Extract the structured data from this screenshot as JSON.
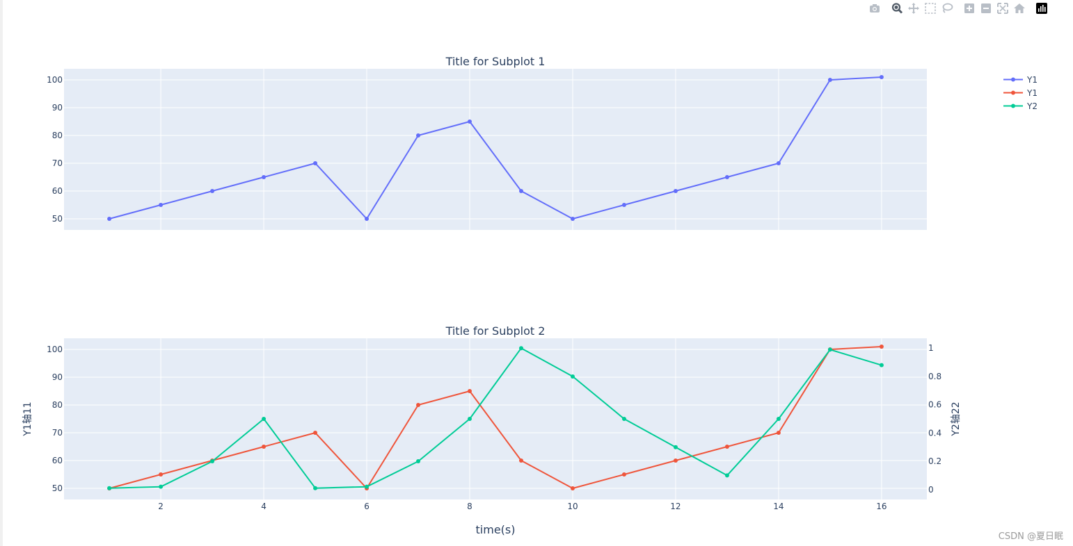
{
  "modebar": {
    "icons": [
      "camera-icon",
      "zoom-icon",
      "pan-icon",
      "box-select-icon",
      "lasso-select-icon",
      "zoom-in-icon",
      "zoom-out-icon",
      "autoscale-icon",
      "reset-axes-icon",
      "plotly-logo-icon"
    ]
  },
  "colors": {
    "plot_bg": "#e5ecf6",
    "grid": "#ffffff",
    "text": "#2a3f5f",
    "blue": "#636efa",
    "red": "#ef553b",
    "green": "#00cc96"
  },
  "legend": {
    "items": [
      {
        "label": "Y1",
        "color": "#636efa"
      },
      {
        "label": "Y1",
        "color": "#ef553b"
      },
      {
        "label": "Y2",
        "color": "#00cc96"
      }
    ]
  },
  "watermark": "CSDN @夏日眠",
  "chart_data": [
    {
      "type": "line",
      "title": "Title for Subplot 1",
      "x": [
        1,
        2,
        3,
        4,
        5,
        6,
        7,
        8,
        9,
        10,
        11,
        12,
        13,
        14,
        15,
        16
      ],
      "xlim": [
        0.12,
        16.88
      ],
      "ylim": [
        46,
        104
      ],
      "yticks": [
        50,
        60,
        70,
        80,
        90,
        100
      ],
      "grid": true,
      "series": [
        {
          "name": "Y1",
          "color": "#636efa",
          "axis": "y",
          "values": [
            50,
            55,
            60,
            65,
            70,
            50,
            80,
            85,
            60,
            50,
            55,
            60,
            65,
            70,
            100,
            101
          ]
        }
      ]
    },
    {
      "type": "line",
      "title": "Title for Subplot 2",
      "xlabel": "time(s)",
      "ylabel": "Y1轴11",
      "y2label": "Y2轴22",
      "x": [
        1,
        2,
        3,
        4,
        5,
        6,
        7,
        8,
        9,
        10,
        11,
        12,
        13,
        14,
        15,
        16
      ],
      "xlim": [
        0.12,
        16.88
      ],
      "xticks": [
        2,
        4,
        6,
        8,
        10,
        12,
        14,
        16
      ],
      "ylim": [
        46,
        104
      ],
      "yticks": [
        50,
        60,
        70,
        80,
        90,
        100
      ],
      "y2lim": [
        -0.07,
        1.07
      ],
      "y2ticks": [
        0,
        0.2,
        0.4,
        0.6,
        0.8,
        1
      ],
      "grid": true,
      "series": [
        {
          "name": "Y1",
          "color": "#ef553b",
          "axis": "y",
          "values": [
            50,
            55,
            60,
            65,
            70,
            50,
            80,
            85,
            60,
            50,
            55,
            60,
            65,
            70,
            100,
            101
          ]
        },
        {
          "name": "Y2",
          "color": "#00cc96",
          "axis": "y2",
          "values": [
            0.01,
            0.02,
            0.2,
            0.5,
            0.01,
            0.02,
            0.2,
            0.5,
            1.0,
            0.8,
            0.5,
            0.3,
            0.1,
            0.5,
            0.99,
            0.88
          ]
        }
      ]
    }
  ]
}
